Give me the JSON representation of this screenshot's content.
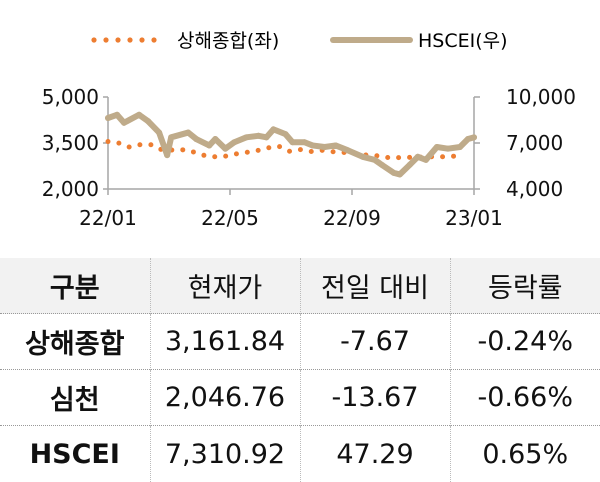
{
  "chart_data": {
    "type": "line",
    "legend_placement": "top",
    "x_ticks": [
      "22/01",
      "22/05",
      "22/09",
      "23/01"
    ],
    "x_range": [
      "2022-01-01",
      "2023-01-01"
    ],
    "y_left": {
      "range": [
        2000,
        5000
      ],
      "ticks": [
        "2,000",
        "3,500",
        "5,000"
      ]
    },
    "y_right": {
      "range": [
        4000,
        10000
      ],
      "ticks": [
        "4,000",
        "7,000",
        "10,000"
      ]
    },
    "grid": false,
    "series": [
      {
        "name": "상해종합(좌)",
        "axis": "left",
        "style": "dotted",
        "color": "#ed7d31",
        "x": [
          "2022-01-01",
          "2022-01-12",
          "2022-01-22",
          "2022-02-01",
          "2022-02-13",
          "2022-02-22",
          "2022-03-09",
          "2022-03-20",
          "2022-03-29",
          "2022-04-09",
          "2022-04-15",
          "2022-04-26",
          "2022-05-07",
          "2022-05-18",
          "2022-05-30",
          "2022-06-09",
          "2022-06-20",
          "2022-07-01",
          "2022-07-12",
          "2022-07-23",
          "2022-08-02",
          "2022-08-14",
          "2022-08-25",
          "2022-09-05",
          "2022-09-16",
          "2022-09-30",
          "2022-10-11",
          "2022-10-20",
          "2022-10-29",
          "2022-11-10",
          "2022-11-19",
          "2022-12-02",
          "2022-12-14"
        ],
        "y": [
          3547,
          3495,
          3368,
          3442,
          3442,
          3295,
          3263,
          3284,
          3189,
          3074,
          3053,
          3053,
          3137,
          3189,
          3253,
          3337,
          3400,
          3232,
          3284,
          3221,
          3263,
          3211,
          3190,
          3147,
          3105,
          3074,
          3000,
          3032,
          3030,
          3040,
          3053,
          3053,
          3074
        ]
      },
      {
        "name": "HSCEI(우)",
        "axis": "right",
        "style": "solid",
        "color": "#bfab8a",
        "x": [
          "2022-01-01",
          "2022-01-10",
          "2022-01-17",
          "2022-02-01",
          "2022-02-10",
          "2022-02-21",
          "2022-03-01",
          "2022-03-05",
          "2022-03-22",
          "2022-03-30",
          "2022-04-12",
          "2022-04-18",
          "2022-04-28",
          "2022-05-07",
          "2022-05-19",
          "2022-05-31",
          "2022-06-08",
          "2022-06-15",
          "2022-06-27",
          "2022-07-04",
          "2022-07-16",
          "2022-07-24",
          "2022-08-05",
          "2022-08-16",
          "2022-08-28",
          "2022-09-12",
          "2022-09-24",
          "2022-10-01",
          "2022-10-13",
          "2022-10-19",
          "2022-10-29",
          "2022-11-06",
          "2022-11-14",
          "2022-11-25",
          "2022-12-06",
          "2022-12-18",
          "2022-12-26",
          "2023-01-01"
        ],
        "y": [
          8630,
          8840,
          8320,
          8840,
          8420,
          7680,
          6210,
          7370,
          7680,
          7260,
          6840,
          7260,
          6630,
          7050,
          7370,
          7470,
          7370,
          7890,
          7580,
          7050,
          7050,
          6840,
          6740,
          6840,
          6530,
          6100,
          5900,
          5580,
          5050,
          4950,
          5580,
          6100,
          5900,
          6740,
          6630,
          6740,
          7260,
          7370
        ]
      }
    ]
  },
  "table": {
    "headers": [
      "구분",
      "현재가",
      "전일 대비",
      "등락률"
    ],
    "rows": [
      [
        "상해종합",
        "3,161.84",
        "-7.67",
        "-0.24%"
      ],
      [
        "심천",
        "2,046.76",
        "-13.67",
        "-0.66%"
      ],
      [
        "HSCEI",
        "7,310.92",
        "47.29",
        "0.65%"
      ]
    ]
  }
}
